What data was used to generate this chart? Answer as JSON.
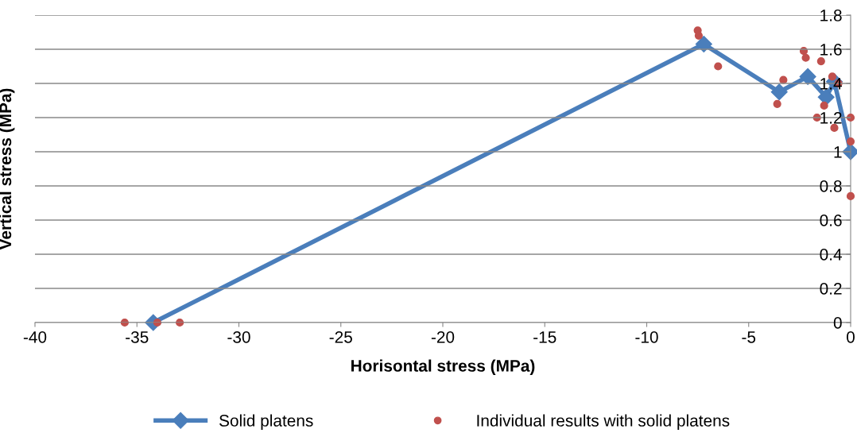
{
  "chart_data": {
    "type": "line",
    "xlabel": "Horisontal stress (MPa)",
    "ylabel": "Vertical stress (MPa)",
    "xlim": [
      -40,
      0
    ],
    "xticks": [
      -40,
      -35,
      -30,
      -25,
      -20,
      -15,
      -10,
      -5,
      0
    ],
    "ylim": [
      0,
      1.8
    ],
    "yticks": [
      0,
      0.2,
      0.4,
      0.6,
      0.8,
      1,
      1.2,
      1.4,
      1.6,
      1.8
    ],
    "grid": "y",
    "legend": "bottom",
    "series": [
      {
        "name": "Solid platens",
        "color": "#4a7ebb",
        "marker": "diamond",
        "line_style": "solid",
        "x": [
          -34.2,
          -7.2,
          -3.5,
          -2.1,
          -1.2,
          -0.8,
          0
        ],
        "values": [
          0,
          1.63,
          1.35,
          1.44,
          1.32,
          1.41,
          1.0
        ]
      },
      {
        "name": "Individual results with solid platens",
        "type": "scatter",
        "color": "#c0504d",
        "marker": "circle",
        "x": [
          -35.6,
          -34.0,
          -32.9,
          -7.5,
          -7.45,
          -6.5,
          -3.3,
          -3.6,
          -2.3,
          -2.2,
          -1.45,
          -0.9,
          -0.6,
          -1.3,
          -1.65,
          -0.8,
          0,
          0,
          0
        ],
        "values": [
          0,
          0,
          0,
          1.71,
          1.68,
          1.5,
          1.42,
          1.28,
          1.59,
          1.55,
          1.53,
          1.44,
          1.4,
          1.27,
          1.2,
          1.14,
          1.2,
          1.06,
          0.74
        ]
      }
    ]
  }
}
